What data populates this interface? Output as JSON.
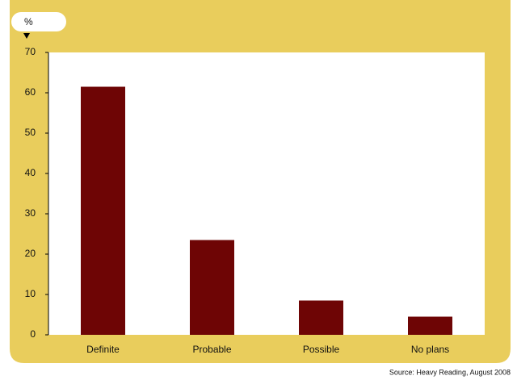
{
  "chart_data": {
    "type": "bar",
    "y_axis_label": "%",
    "source": "Source: Heavy Reading, August 2008",
    "categories": [
      "Definite",
      "Probable",
      "Possible",
      "No plans"
    ],
    "values": [
      61.5,
      23.5,
      8.5,
      4.5
    ],
    "color": "#6e0505",
    "ylim": [
      0,
      70
    ],
    "yticks": [
      0,
      10,
      20,
      30,
      40,
      50,
      60,
      70
    ],
    "grid": false
  }
}
